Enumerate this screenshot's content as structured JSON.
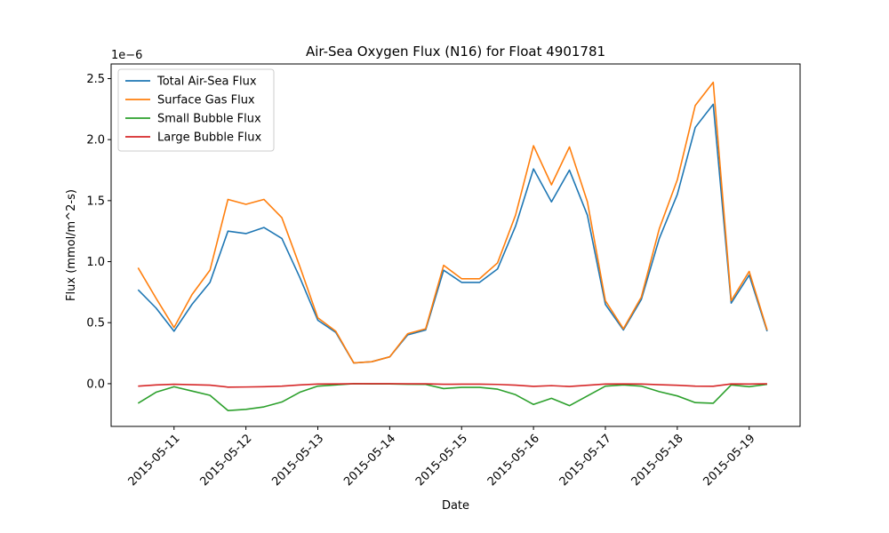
{
  "chart_data": {
    "type": "line",
    "title": "Air-Sea Oxygen Flux (N16) for Float 4901781",
    "xlabel": "Date",
    "ylabel": "Flux (mmol/m^2-s)",
    "y_offset_label": "1e−6",
    "xlim": [
      "2015-05-10 03:00",
      "2015-05-19 17:00"
    ],
    "ylim": [
      -0.35,
      2.62
    ],
    "x_ticks": [
      "2015-05-11",
      "2015-05-12",
      "2015-05-13",
      "2015-05-14",
      "2015-05-15",
      "2015-05-16",
      "2015-05-17",
      "2015-05-18",
      "2015-05-19"
    ],
    "y_ticks": [
      "0.0",
      "0.5",
      "1.0",
      "1.5",
      "2.0",
      "2.5"
    ],
    "y_tick_values": [
      0,
      0.5,
      1.0,
      1.5,
      2.0,
      2.5
    ],
    "grid": false,
    "legend_position": "upper-left",
    "x": [
      "2015-05-10 12:00",
      "2015-05-10 18:00",
      "2015-05-11 00:00",
      "2015-05-11 06:00",
      "2015-05-11 12:00",
      "2015-05-11 18:00",
      "2015-05-12 00:00",
      "2015-05-12 06:00",
      "2015-05-12 12:00",
      "2015-05-12 18:00",
      "2015-05-13 00:00",
      "2015-05-13 06:00",
      "2015-05-13 12:00",
      "2015-05-13 18:00",
      "2015-05-14 00:00",
      "2015-05-14 06:00",
      "2015-05-14 12:00",
      "2015-05-14 18:00",
      "2015-05-15 00:00",
      "2015-05-15 06:00",
      "2015-05-15 12:00",
      "2015-05-15 18:00",
      "2015-05-16 00:00",
      "2015-05-16 06:00",
      "2015-05-16 12:00",
      "2015-05-16 18:00",
      "2015-05-17 00:00",
      "2015-05-17 06:00",
      "2015-05-17 12:00",
      "2015-05-17 18:00",
      "2015-05-18 00:00",
      "2015-05-18 06:00",
      "2015-05-18 12:00",
      "2015-05-18 18:00",
      "2015-05-19 00:00",
      "2015-05-19 06:00"
    ],
    "series": [
      {
        "name": "Total Air-Sea Flux",
        "color": "#1f77b4",
        "values": [
          0.77,
          0.62,
          0.43,
          0.65,
          0.83,
          1.25,
          1.23,
          1.28,
          1.19,
          0.87,
          0.52,
          0.42,
          0.17,
          0.18,
          0.22,
          0.4,
          0.44,
          0.93,
          0.83,
          0.83,
          0.94,
          1.29,
          1.76,
          1.49,
          1.75,
          1.38,
          0.65,
          0.44,
          0.69,
          1.19,
          1.55,
          2.1,
          2.29,
          0.66,
          0.89,
          0.43
        ]
      },
      {
        "name": "Surface Gas Flux",
        "color": "#ff7f0e",
        "values": [
          0.95,
          0.7,
          0.46,
          0.73,
          0.93,
          1.51,
          1.47,
          1.51,
          1.36,
          0.96,
          0.54,
          0.43,
          0.17,
          0.18,
          0.22,
          0.41,
          0.45,
          0.97,
          0.86,
          0.86,
          0.99,
          1.38,
          1.95,
          1.63,
          1.94,
          1.49,
          0.68,
          0.45,
          0.71,
          1.27,
          1.67,
          2.28,
          2.47,
          0.68,
          0.92,
          0.44
        ]
      },
      {
        "name": "Small Bubble Flux",
        "color": "#2ca02c",
        "values": [
          -0.16,
          -0.07,
          -0.025,
          -0.06,
          -0.095,
          -0.22,
          -0.21,
          -0.19,
          -0.15,
          -0.07,
          -0.02,
          -0.01,
          0.0,
          -0.002,
          -0.002,
          -0.005,
          -0.006,
          -0.04,
          -0.03,
          -0.03,
          -0.045,
          -0.09,
          -0.17,
          -0.12,
          -0.18,
          -0.1,
          -0.02,
          -0.01,
          -0.02,
          -0.065,
          -0.1,
          -0.155,
          -0.16,
          -0.01,
          -0.025,
          -0.005
        ]
      },
      {
        "name": "Large Bubble Flux",
        "color": "#d62728",
        "values": [
          -0.02,
          -0.01,
          -0.005,
          -0.008,
          -0.012,
          -0.028,
          -0.027,
          -0.025,
          -0.02,
          -0.01,
          -0.003,
          -0.002,
          0.0,
          0.0,
          0.0,
          -0.001,
          -0.001,
          -0.005,
          -0.004,
          -0.004,
          -0.006,
          -0.012,
          -0.022,
          -0.016,
          -0.023,
          -0.013,
          -0.003,
          -0.002,
          -0.003,
          -0.008,
          -0.013,
          -0.02,
          -0.021,
          -0.002,
          -0.003,
          -0.001
        ]
      }
    ]
  }
}
